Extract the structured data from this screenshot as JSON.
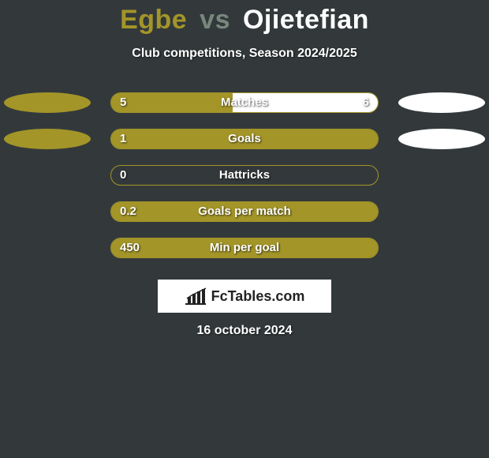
{
  "title": {
    "player1": "Egbe",
    "vs": "vs",
    "player2": "Ojietefian"
  },
  "subtitle": "Club competitions, Season 2024/2025",
  "colors": {
    "bg": "#33393b",
    "p1": "#a39528",
    "p2": "#ffffff",
    "barTrack": "#33393b"
  },
  "rows": [
    {
      "label": "Matches",
      "left": "5",
      "right": "6",
      "leftFrac": 0.4545,
      "rightFrac": 0.5455,
      "showOvals": true
    },
    {
      "label": "Goals",
      "left": "1",
      "right": "",
      "leftFrac": 1.0,
      "rightFrac": 0.0,
      "showOvals": true
    },
    {
      "label": "Hattricks",
      "left": "0",
      "right": "",
      "leftFrac": 0.0,
      "rightFrac": 0.0,
      "showOvals": false
    },
    {
      "label": "Goals per match",
      "left": "0.2",
      "right": "",
      "leftFrac": 1.0,
      "rightFrac": 0.0,
      "showOvals": false
    },
    {
      "label": "Min per goal",
      "left": "450",
      "right": "",
      "leftFrac": 1.0,
      "rightFrac": 0.0,
      "showOvals": false
    }
  ],
  "brand": "FcTables.com",
  "date": "16 october 2024"
}
